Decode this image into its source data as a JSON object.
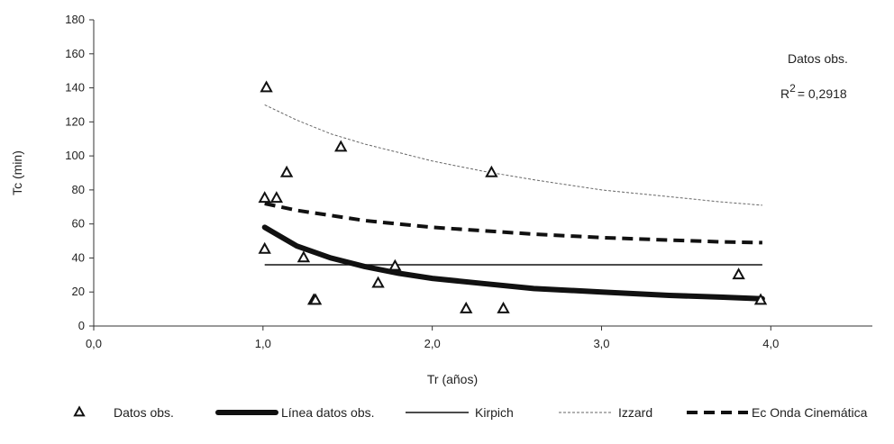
{
  "chart_data": {
    "type": "scatter",
    "title": "",
    "xlabel": "Tr (años)",
    "ylabel": "Tc  (min)",
    "xlim": [
      0,
      4.6
    ],
    "ylim": [
      0,
      180
    ],
    "x_ticks": [
      "0,0",
      "1,0",
      "2,0",
      "3,0",
      "4,0"
    ],
    "x_tick_values": [
      0,
      1,
      2,
      3,
      4
    ],
    "y_ticks": [
      "0",
      "20",
      "40",
      "60",
      "80",
      "100",
      "120",
      "140",
      "160",
      "180"
    ],
    "y_tick_values": [
      0,
      20,
      40,
      60,
      80,
      100,
      120,
      140,
      160,
      180
    ],
    "grid": false,
    "legend_position": "bottom",
    "series": [
      {
        "name": "Datos obs.",
        "kind": "scatter",
        "marker": "triangle-open",
        "points": [
          {
            "x": 1.02,
            "y": 140
          },
          {
            "x": 1.01,
            "y": 75
          },
          {
            "x": 1.08,
            "y": 75
          },
          {
            "x": 1.14,
            "y": 90
          },
          {
            "x": 1.01,
            "y": 45
          },
          {
            "x": 1.24,
            "y": 40
          },
          {
            "x": 1.3,
            "y": 15
          },
          {
            "x": 1.31,
            "y": 15
          },
          {
            "x": 1.46,
            "y": 105
          },
          {
            "x": 1.68,
            "y": 25
          },
          {
            "x": 1.78,
            "y": 35
          },
          {
            "x": 2.2,
            "y": 10
          },
          {
            "x": 2.35,
            "y": 90
          },
          {
            "x": 2.42,
            "y": 10
          },
          {
            "x": 3.81,
            "y": 30
          },
          {
            "x": 3.94,
            "y": 15
          }
        ]
      },
      {
        "name": "Línea datos obs.",
        "kind": "line",
        "style": "thick",
        "points": [
          {
            "x": 1.01,
            "y": 58
          },
          {
            "x": 1.2,
            "y": 47
          },
          {
            "x": 1.4,
            "y": 40
          },
          {
            "x": 1.6,
            "y": 35
          },
          {
            "x": 1.8,
            "y": 31
          },
          {
            "x": 2.0,
            "y": 28
          },
          {
            "x": 2.3,
            "y": 25
          },
          {
            "x": 2.6,
            "y": 22
          },
          {
            "x": 3.0,
            "y": 20
          },
          {
            "x": 3.4,
            "y": 18
          },
          {
            "x": 3.7,
            "y": 17
          },
          {
            "x": 3.95,
            "y": 16
          }
        ]
      },
      {
        "name": "Kirpich",
        "kind": "line",
        "style": "solid",
        "points": [
          {
            "x": 1.01,
            "y": 36
          },
          {
            "x": 3.95,
            "y": 36
          }
        ]
      },
      {
        "name": "Izzard",
        "kind": "line",
        "style": "dotted",
        "points": [
          {
            "x": 1.01,
            "y": 130
          },
          {
            "x": 1.2,
            "y": 121
          },
          {
            "x": 1.4,
            "y": 113
          },
          {
            "x": 1.6,
            "y": 107
          },
          {
            "x": 1.8,
            "y": 102
          },
          {
            "x": 2.0,
            "y": 97
          },
          {
            "x": 2.3,
            "y": 91
          },
          {
            "x": 2.6,
            "y": 86
          },
          {
            "x": 3.0,
            "y": 80
          },
          {
            "x": 3.4,
            "y": 76
          },
          {
            "x": 3.7,
            "y": 73
          },
          {
            "x": 3.95,
            "y": 71
          }
        ]
      },
      {
        "name": "Ec Onda Cinemática",
        "kind": "line",
        "style": "dashed",
        "points": [
          {
            "x": 1.01,
            "y": 72
          },
          {
            "x": 1.2,
            "y": 68
          },
          {
            "x": 1.4,
            "y": 65
          },
          {
            "x": 1.6,
            "y": 62
          },
          {
            "x": 1.8,
            "y": 60
          },
          {
            "x": 2.0,
            "y": 58
          },
          {
            "x": 2.3,
            "y": 56
          },
          {
            "x": 2.6,
            "y": 54
          },
          {
            "x": 3.0,
            "y": 52
          },
          {
            "x": 3.4,
            "y": 50.5
          },
          {
            "x": 3.7,
            "y": 49.5
          },
          {
            "x": 3.95,
            "y": 49
          }
        ]
      }
    ],
    "annotations": {
      "line1": "Datos obs.",
      "r2_prefix": "R",
      "r2_exponent": "2",
      "r2_value": "= 0,2918"
    }
  }
}
